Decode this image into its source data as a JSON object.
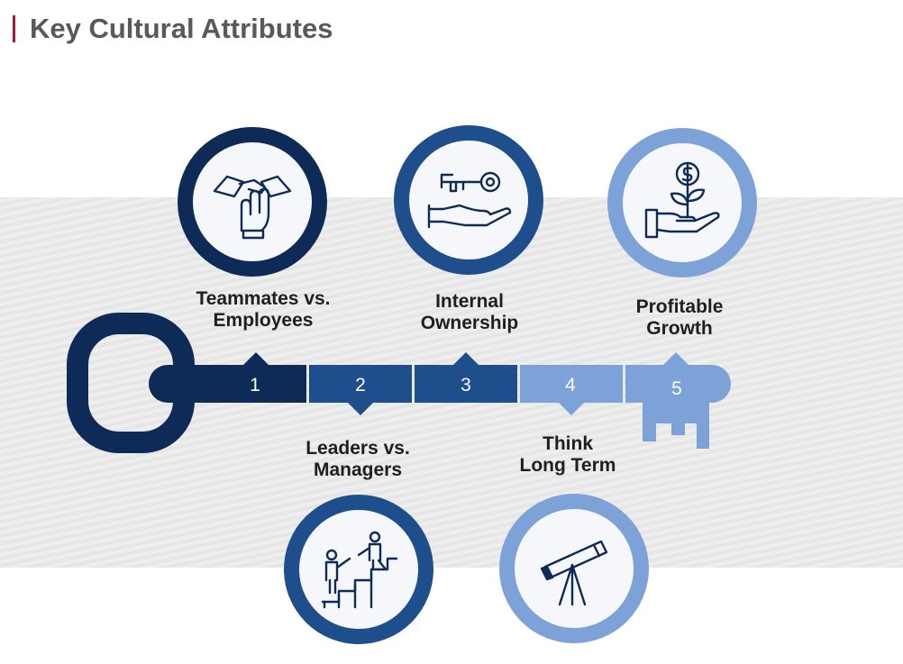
{
  "title": "Key Cultural Attributes",
  "colors": {
    "accent_red": "#a6192e",
    "navy": "#0e2a56",
    "mid_blue": "#1f4e8c",
    "light_blue": "#7da2d8",
    "title_gray": "#595959"
  },
  "attributes": [
    {
      "number": "1",
      "line1": "Teammates vs.",
      "line2": "Employees",
      "icon": "handshake-stack-icon"
    },
    {
      "number": "2",
      "line1": "Leaders vs.",
      "line2": "Managers",
      "icon": "people-climbing-stairs-icon"
    },
    {
      "number": "3",
      "line1": "Internal",
      "line2": "Ownership",
      "icon": "key-in-hand-icon"
    },
    {
      "number": "4",
      "line1": "Think",
      "line2": "Long Term",
      "icon": "telescope-icon"
    },
    {
      "number": "5",
      "line1": "Profitable",
      "line2": "Growth",
      "icon": "money-plant-in-hand-icon"
    }
  ]
}
